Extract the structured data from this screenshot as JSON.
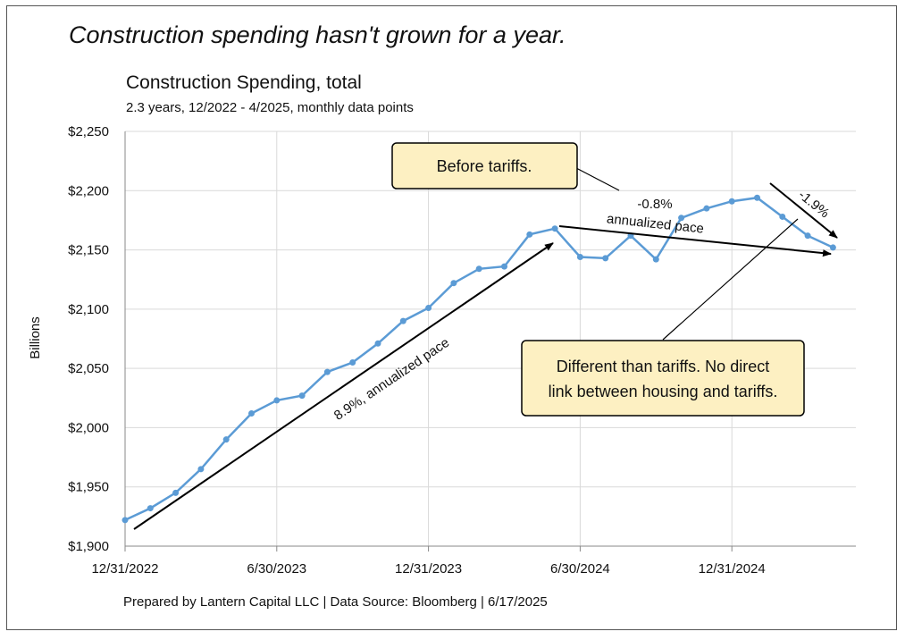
{
  "headline": "Construction spending hasn't grown for a year.",
  "footer": "Prepared by Lantern Capital LLC | Data Source: Bloomberg | 6/17/2025",
  "colors": {
    "series": "#5b9bd5",
    "callout_fill": "#fdf0c2",
    "grid": "#d9d9d9"
  },
  "chart_data": {
    "type": "line",
    "title": "Construction Spending, total",
    "subtitle": "2.3 years, 12/2022 - 4/2025, monthly data points",
    "ylabel": "Billions",
    "ylim": [
      1900,
      2250
    ],
    "yticks": [
      1900,
      1950,
      2000,
      2050,
      2100,
      2150,
      2200,
      2250
    ],
    "ytick_labels": [
      "$1,900",
      "$1,950",
      "$2,000",
      "$2,050",
      "$2,100",
      "$2,150",
      "$2,200",
      "$2,250"
    ],
    "xticks": [
      "12/31/2022",
      "6/30/2023",
      "12/31/2023",
      "6/30/2024",
      "12/31/2024"
    ],
    "grid": true,
    "series": [
      {
        "x": [
          "12/31/2022",
          "1/31/2023",
          "2/28/2023",
          "3/31/2023",
          "4/30/2023",
          "5/31/2023",
          "6/30/2023",
          "7/31/2023",
          "8/31/2023",
          "9/30/2023",
          "10/31/2023",
          "11/30/2023",
          "12/31/2023",
          "1/31/2024",
          "2/29/2024",
          "3/31/2024",
          "4/30/2024",
          "5/31/2024",
          "6/30/2024",
          "7/31/2024",
          "8/31/2024",
          "9/30/2024",
          "10/31/2024",
          "11/30/2024",
          "12/31/2024",
          "1/31/2025",
          "2/28/2025",
          "3/31/2025",
          "4/30/2025"
        ],
        "values": [
          1922,
          1932,
          1945,
          1965,
          1990,
          2012,
          2023,
          2027,
          2047,
          2055,
          2071,
          2090,
          2101,
          2122,
          2134,
          2136,
          2163,
          2168,
          2144,
          2143,
          2162,
          2142,
          2177,
          2185,
          2191,
          2194,
          2178,
          2162,
          2152
        ]
      }
    ],
    "annotations": {
      "trend1_label": "8.9%, annualized pace",
      "trend2_value": "-0.8%",
      "trend2_label": "annualized pace",
      "trend3_label": "-1.9%",
      "callout1": "Before tariffs.",
      "callout2_line1": "Different than tariffs. No direct",
      "callout2_line2": "link between housing and tariffs."
    }
  }
}
